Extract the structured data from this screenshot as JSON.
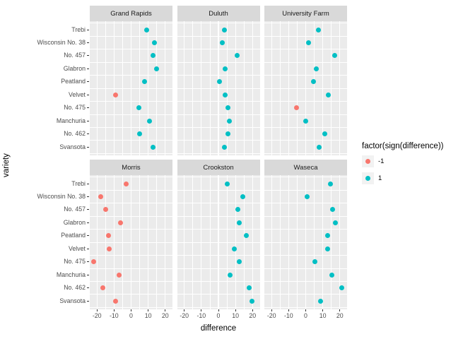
{
  "chart_data": {
    "type": "scatter",
    "title": "",
    "xlabel": "difference",
    "ylabel": "variety",
    "x_ticks": [
      -20,
      -10,
      0,
      10,
      20
    ],
    "xlim": [
      -24.2,
      24.2
    ],
    "grid": "on",
    "legend_position": "right",
    "categories_top_to_bottom": [
      "Trebi",
      "Wisconsin No. 38",
      "No. 457",
      "Glabron",
      "Peatland",
      "Velvet",
      "No. 475",
      "Manchuria",
      "No. 462",
      "Svansota"
    ],
    "facet_layout": [
      [
        "Grand Rapids",
        "Duluth",
        "University Farm"
      ],
      [
        "Morris",
        "Crookston",
        "Waseca"
      ]
    ],
    "series": [
      {
        "name": "Grand Rapids",
        "values": [
          9.1,
          13.7,
          12.6,
          14.7,
          7.9,
          -9.2,
          4.4,
          10.8,
          5.0,
          13.0
        ]
      },
      {
        "name": "Duluth",
        "values": [
          3.6,
          2.3,
          10.9,
          3.8,
          0.6,
          3.8,
          5.4,
          6.4,
          5.6,
          3.5
        ]
      },
      {
        "name": "University Farm",
        "values": [
          7.5,
          1.8,
          16.8,
          6.3,
          4.7,
          13.1,
          -5.3,
          0.1,
          11.0,
          7.7
        ]
      },
      {
        "name": "Morris",
        "values": [
          -2.9,
          -17.8,
          -15.1,
          -6.4,
          -13.4,
          -12.7,
          -21.8,
          -6.9,
          -16.6,
          -9.3
        ]
      },
      {
        "name": "Crookston",
        "values": [
          5.0,
          14.1,
          11.5,
          12.0,
          16.5,
          9.3,
          12.3,
          7.0,
          17.9,
          19.8
        ]
      },
      {
        "name": "Waseca",
        "values": [
          14.4,
          0.8,
          15.6,
          17.3,
          12.6,
          12.6,
          5.5,
          15.2,
          21.2,
          8.8
        ]
      }
    ],
    "point_color_rule": "negative -> -1 color, positive -> 1 color"
  },
  "legend": {
    "title": "factor(sign(difference))",
    "items": [
      {
        "label": "-1",
        "color": "#F8766D"
      },
      {
        "label": "1",
        "color": "#00BFC4"
      }
    ]
  },
  "colors": {
    "negative": "#F8766D",
    "positive": "#00BFC4",
    "panel_bg": "#EBEBEB",
    "strip_bg": "#D9D9D9",
    "grid": "#FFFFFF",
    "axis_text": "#4D4D4D",
    "tick_mark": "#333333",
    "legend_key_bg": "#F2F2F2"
  }
}
